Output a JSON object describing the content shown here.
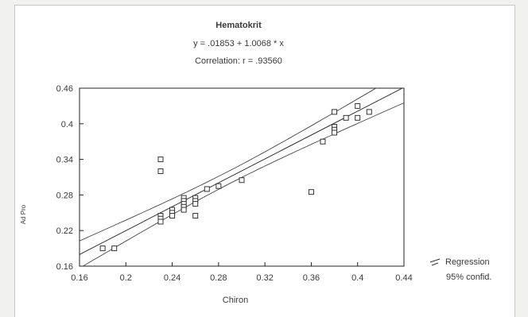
{
  "chart_data": {
    "type": "scatter",
    "title": "Hematokrit",
    "equation": "y = .01853 + 1.0068 * x",
    "correlation": "Correlation: r = .93560",
    "xlabel": "Chiron",
    "ylabel": "Ad Pro",
    "xlim": [
      0.16,
      0.44
    ],
    "ylim": [
      0.16,
      0.46
    ],
    "xticks": [
      "0.16",
      "0.2",
      "0.24",
      "0.28",
      "0.32",
      "0.36",
      "0.4",
      "0.44"
    ],
    "yticks": [
      "0.16",
      "0.22",
      "0.28",
      "0.34",
      "0.4",
      "0.46"
    ],
    "grid": false,
    "legend": {
      "position": "bottom-right",
      "items": [
        "Regression",
        "95% confid."
      ]
    },
    "regression": {
      "intercept": 0.01853,
      "slope": 1.0068
    },
    "points": [
      {
        "x": 0.18,
        "y": 0.19
      },
      {
        "x": 0.19,
        "y": 0.19
      },
      {
        "x": 0.23,
        "y": 0.34
      },
      {
        "x": 0.23,
        "y": 0.32
      },
      {
        "x": 0.23,
        "y": 0.245
      },
      {
        "x": 0.23,
        "y": 0.24
      },
      {
        "x": 0.23,
        "y": 0.235
      },
      {
        "x": 0.24,
        "y": 0.255
      },
      {
        "x": 0.24,
        "y": 0.25
      },
      {
        "x": 0.24,
        "y": 0.245
      },
      {
        "x": 0.25,
        "y": 0.275
      },
      {
        "x": 0.25,
        "y": 0.27
      },
      {
        "x": 0.25,
        "y": 0.265
      },
      {
        "x": 0.25,
        "y": 0.26
      },
      {
        "x": 0.25,
        "y": 0.255
      },
      {
        "x": 0.26,
        "y": 0.275
      },
      {
        "x": 0.26,
        "y": 0.27
      },
      {
        "x": 0.26,
        "y": 0.265
      },
      {
        "x": 0.26,
        "y": 0.245
      },
      {
        "x": 0.27,
        "y": 0.29
      },
      {
        "x": 0.28,
        "y": 0.295
      },
      {
        "x": 0.3,
        "y": 0.305
      },
      {
        "x": 0.36,
        "y": 0.285
      },
      {
        "x": 0.37,
        "y": 0.37
      },
      {
        "x": 0.38,
        "y": 0.42
      },
      {
        "x": 0.38,
        "y": 0.395
      },
      {
        "x": 0.38,
        "y": 0.39
      },
      {
        "x": 0.38,
        "y": 0.385
      },
      {
        "x": 0.39,
        "y": 0.41
      },
      {
        "x": 0.4,
        "y": 0.41
      },
      {
        "x": 0.4,
        "y": 0.43
      },
      {
        "x": 0.41,
        "y": 0.42
      }
    ]
  }
}
